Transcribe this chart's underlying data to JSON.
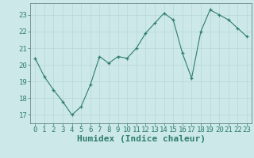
{
  "x": [
    0,
    1,
    2,
    3,
    4,
    5,
    6,
    7,
    8,
    9,
    10,
    11,
    12,
    13,
    14,
    15,
    16,
    17,
    18,
    19,
    20,
    21,
    22,
    23
  ],
  "y": [
    20.4,
    19.3,
    18.5,
    17.8,
    17.0,
    17.5,
    18.8,
    20.5,
    20.1,
    20.5,
    20.4,
    21.0,
    21.9,
    22.5,
    23.1,
    22.7,
    20.7,
    19.2,
    22.0,
    23.3,
    23.0,
    22.7,
    22.2,
    21.7
  ],
  "xlabel": "Humidex (Indice chaleur)",
  "ylim": [
    16.5,
    23.7
  ],
  "xlim": [
    -0.5,
    23.5
  ],
  "yticks": [
    17,
    18,
    19,
    20,
    21,
    22,
    23
  ],
  "xticks": [
    0,
    1,
    2,
    3,
    4,
    5,
    6,
    7,
    8,
    9,
    10,
    11,
    12,
    13,
    14,
    15,
    16,
    17,
    18,
    19,
    20,
    21,
    22,
    23
  ],
  "line_color": "#2e7d6e",
  "marker_color": "#2e7d6e",
  "bg_color": "#cce8e8",
  "grid_color": "#b8d8d8",
  "xlabel_fontsize": 8,
  "tick_fontsize": 6.5
}
